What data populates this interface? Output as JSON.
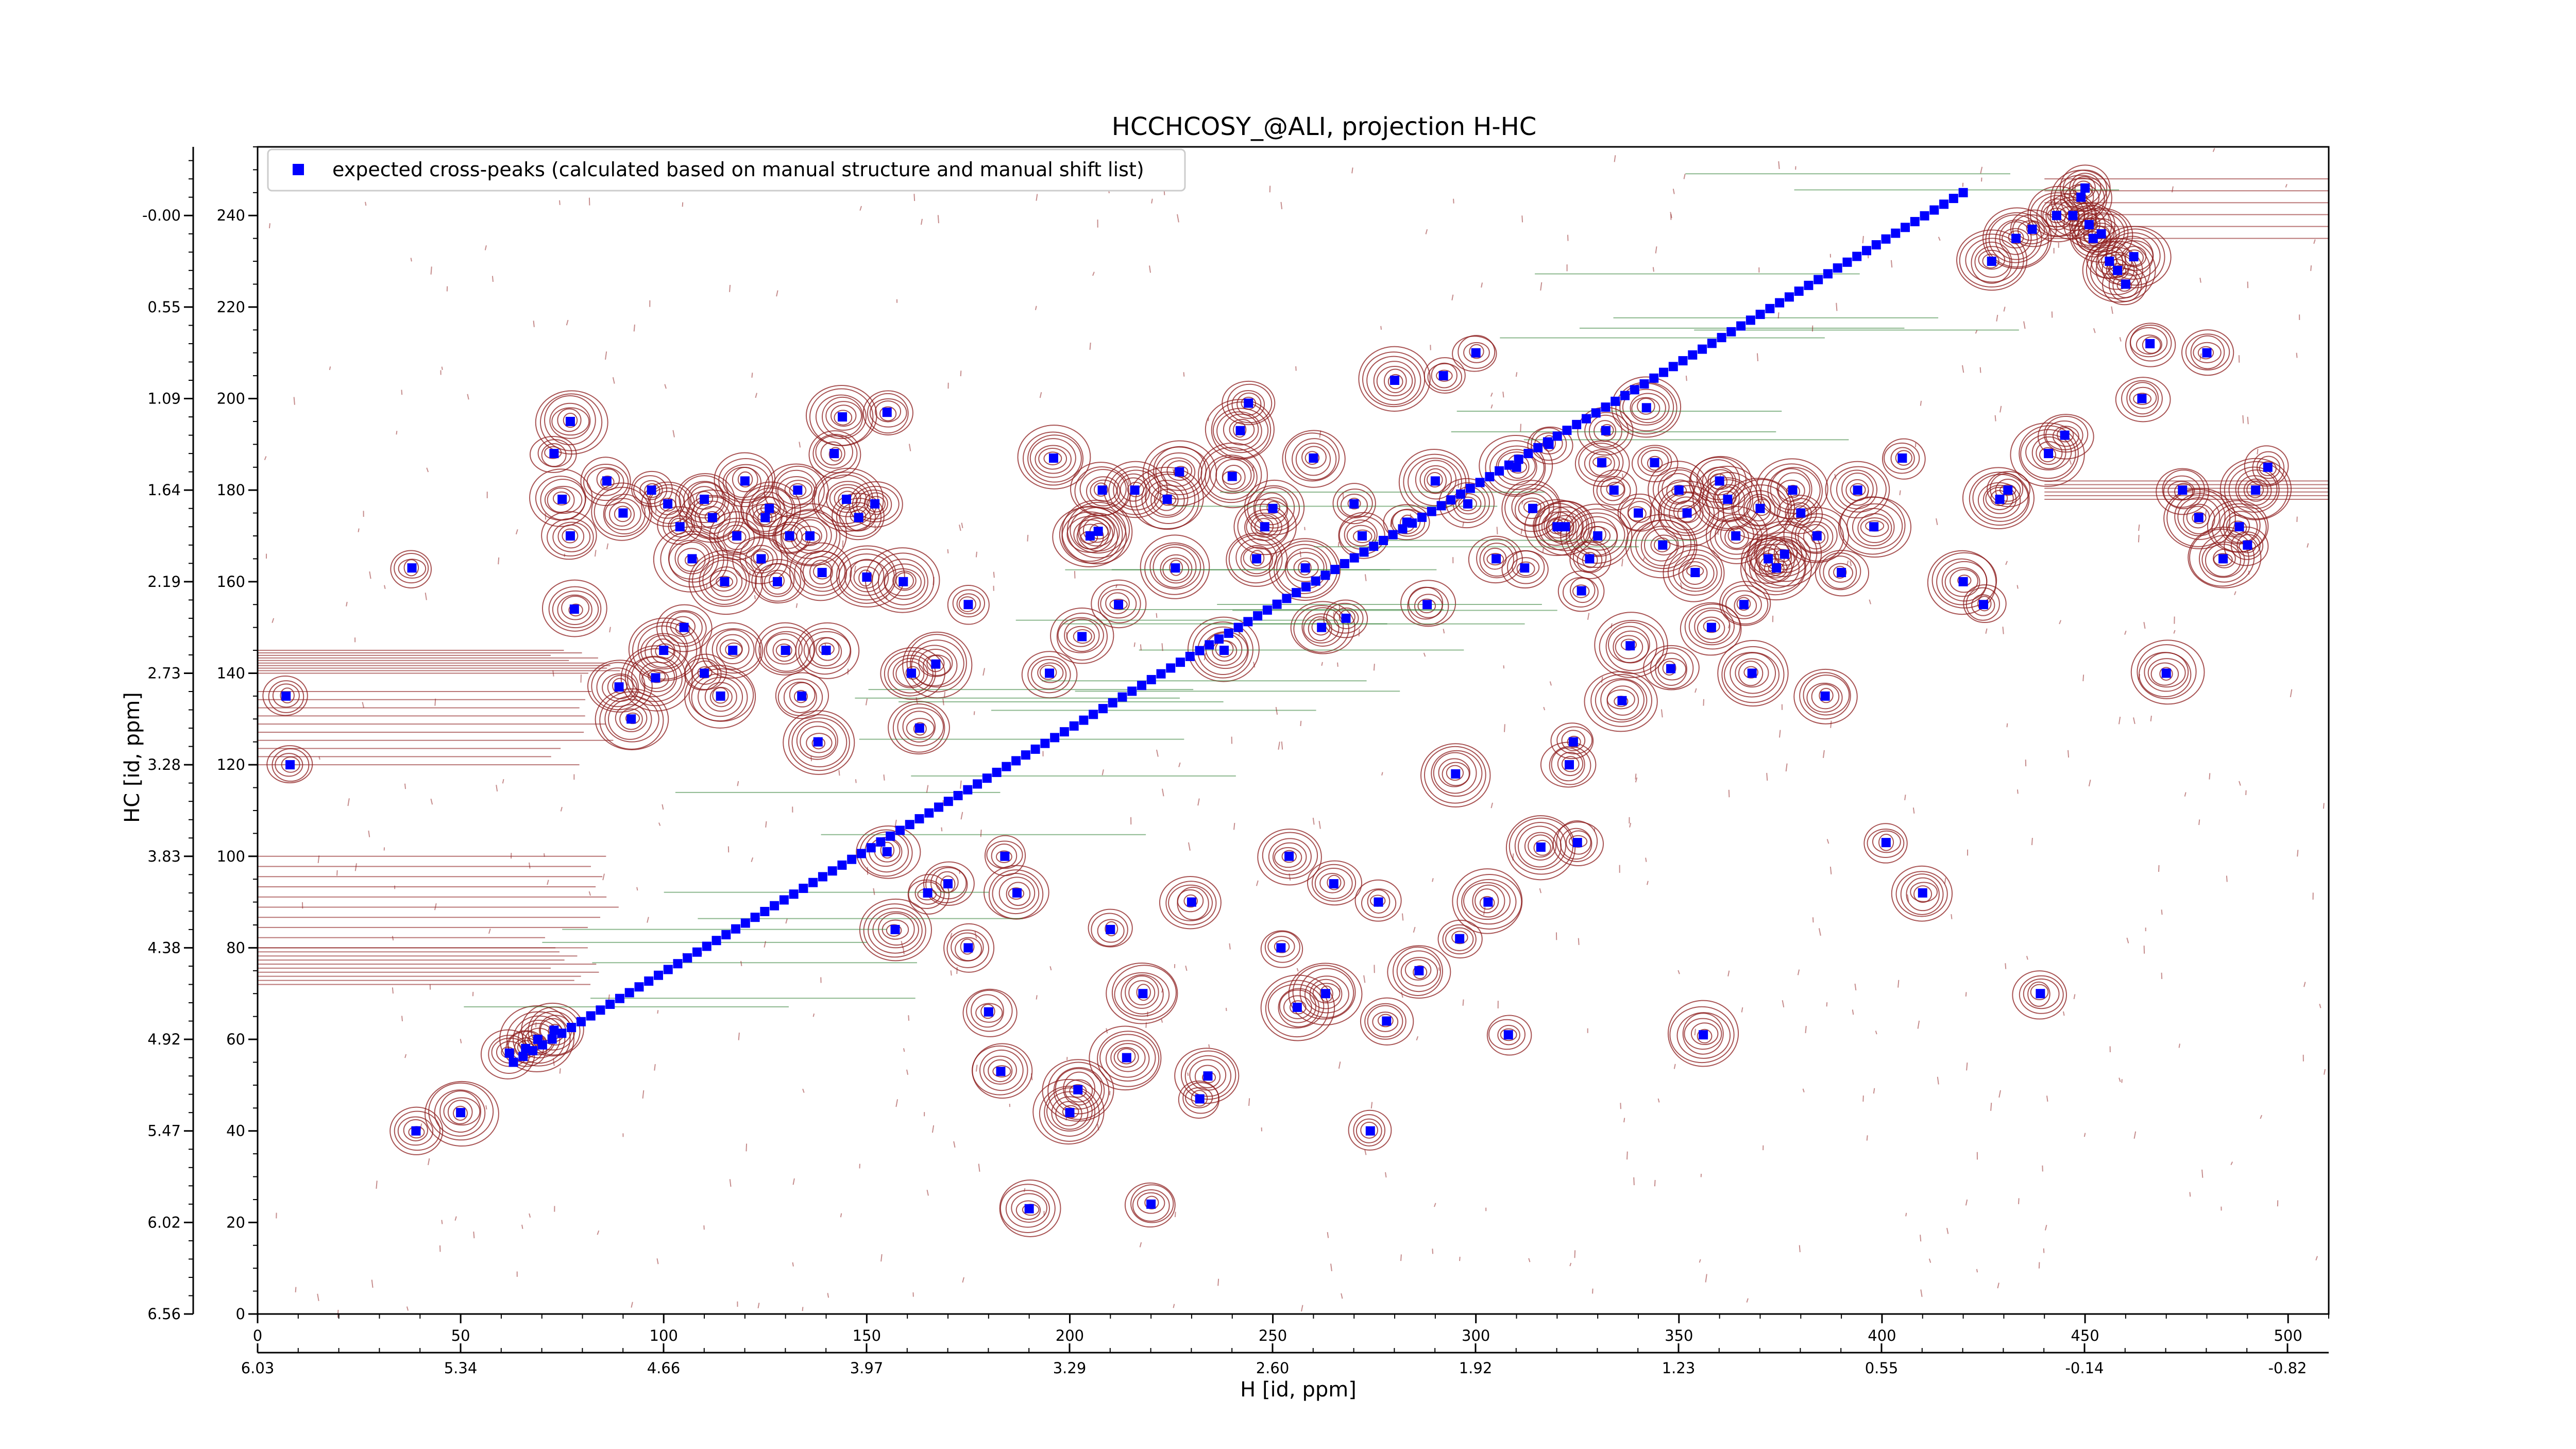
{
  "chart_data": {
    "type": "scatter",
    "title": "HCCHCOSY_@ALI, projection H-HC",
    "xlabel": "H [id, ppm]",
    "ylabel": "HC [id, ppm]",
    "x_index_range": [
      0,
      510
    ],
    "y_index_range": [
      0,
      255
    ],
    "x_index_ticks": [
      "0",
      "50",
      "100",
      "150",
      "200",
      "250",
      "300",
      "350",
      "400",
      "450",
      "500"
    ],
    "x_ppm_ticks": [
      "6.03",
      "5.34",
      "4.66",
      "3.97",
      "3.29",
      "2.60",
      "1.92",
      "1.23",
      "0.55",
      "-0.14",
      "-0.82"
    ],
    "y_index_ticks": [
      "0",
      "20",
      "40",
      "60",
      "80",
      "100",
      "120",
      "140",
      "160",
      "180",
      "200",
      "220",
      "240"
    ],
    "y_ppm_ticks": [
      "6.56",
      "6.02",
      "5.47",
      "4.92",
      "4.38",
      "3.83",
      "3.28",
      "2.73",
      "2.19",
      "1.64",
      "1.09",
      "0.55",
      "-0.00"
    ],
    "legend": {
      "position": "top-left",
      "entry": "expected cross-peaks (calculated based on manual structure and manual shift list)"
    },
    "colors": {
      "points": "#0000ff",
      "positive_contours": "#8b1a1a",
      "negative_contours": "#2e7d32"
    },
    "series": [
      {
        "name": "expected cross-peaks (calculated based on manual structure and manual shift list)",
        "diagonal": {
          "from": [
            63,
            55
          ],
          "to": [
            420,
            245
          ]
        },
        "points": [
          [
            7,
            135
          ],
          [
            8,
            120
          ],
          [
            38,
            163
          ],
          [
            39,
            40
          ],
          [
            50,
            44
          ],
          [
            62,
            57
          ],
          [
            66,
            58
          ],
          [
            69,
            60
          ],
          [
            73,
            62
          ],
          [
            75,
            178
          ],
          [
            73,
            188
          ],
          [
            77,
            195
          ],
          [
            77,
            170
          ],
          [
            78,
            154
          ],
          [
            86,
            182
          ],
          [
            89,
            137
          ],
          [
            90,
            175
          ],
          [
            92,
            130
          ],
          [
            97,
            180
          ],
          [
            98,
            139
          ],
          [
            100,
            145
          ],
          [
            101,
            177
          ],
          [
            104,
            172
          ],
          [
            105,
            150
          ],
          [
            107,
            165
          ],
          [
            110,
            178
          ],
          [
            112,
            174
          ],
          [
            110,
            140
          ],
          [
            114,
            135
          ],
          [
            115,
            160
          ],
          [
            117,
            145
          ],
          [
            118,
            170
          ],
          [
            120,
            182
          ],
          [
            124,
            165
          ],
          [
            125,
            174
          ],
          [
            126,
            176
          ],
          [
            128,
            160
          ],
          [
            130,
            145
          ],
          [
            131,
            170
          ],
          [
            133,
            180
          ],
          [
            134,
            135
          ],
          [
            136,
            170
          ],
          [
            138,
            125
          ],
          [
            139,
            162
          ],
          [
            140,
            145
          ],
          [
            142,
            188
          ],
          [
            144,
            196
          ],
          [
            145,
            178
          ],
          [
            148,
            174
          ],
          [
            150,
            161
          ],
          [
            152,
            177
          ],
          [
            155,
            197
          ],
          [
            155,
            101
          ],
          [
            157,
            84
          ],
          [
            159,
            160
          ],
          [
            161,
            140
          ],
          [
            163,
            128
          ],
          [
            165,
            92
          ],
          [
            167,
            142
          ],
          [
            170,
            94
          ],
          [
            175,
            155
          ],
          [
            175,
            80
          ],
          [
            180,
            66
          ],
          [
            183,
            53
          ],
          [
            184,
            100
          ],
          [
            187,
            92
          ],
          [
            190,
            23
          ],
          [
            195,
            140
          ],
          [
            196,
            187
          ],
          [
            200,
            44
          ],
          [
            202,
            49
          ],
          [
            203,
            148
          ],
          [
            205,
            170
          ],
          [
            207,
            171
          ],
          [
            208,
            180
          ],
          [
            210,
            84
          ],
          [
            212,
            155
          ],
          [
            214,
            56
          ],
          [
            216,
            180
          ],
          [
            218,
            70
          ],
          [
            220,
            24
          ],
          [
            224,
            178
          ],
          [
            226,
            163
          ],
          [
            227,
            184
          ],
          [
            230,
            90
          ],
          [
            232,
            47
          ],
          [
            234,
            52
          ],
          [
            238,
            145
          ],
          [
            240,
            183
          ],
          [
            242,
            193
          ],
          [
            244,
            199
          ],
          [
            246,
            165
          ],
          [
            248,
            172
          ],
          [
            250,
            176
          ],
          [
            252,
            80
          ],
          [
            254,
            100
          ],
          [
            256,
            67
          ],
          [
            258,
            163
          ],
          [
            260,
            187
          ],
          [
            262,
            150
          ],
          [
            263,
            70
          ],
          [
            265,
            94
          ],
          [
            268,
            152
          ],
          [
            270,
            177
          ],
          [
            272,
            170
          ],
          [
            274,
            40
          ],
          [
            276,
            90
          ],
          [
            278,
            64
          ],
          [
            280,
            204
          ],
          [
            283,
            173
          ],
          [
            286,
            75
          ],
          [
            288,
            155
          ],
          [
            290,
            182
          ],
          [
            292,
            205
          ],
          [
            295,
            118
          ],
          [
            296,
            82
          ],
          [
            298,
            177
          ],
          [
            300,
            210
          ],
          [
            303,
            90
          ],
          [
            305,
            165
          ],
          [
            308,
            61
          ],
          [
            310,
            185
          ],
          [
            312,
            163
          ],
          [
            314,
            176
          ],
          [
            316,
            102
          ],
          [
            318,
            190
          ],
          [
            320,
            172
          ],
          [
            322,
            172
          ],
          [
            323,
            120
          ],
          [
            324,
            125
          ],
          [
            325,
            103
          ],
          [
            326,
            158
          ],
          [
            328,
            165
          ],
          [
            330,
            170
          ],
          [
            331,
            186
          ],
          [
            332,
            193
          ],
          [
            334,
            180
          ],
          [
            336,
            134
          ],
          [
            338,
            146
          ],
          [
            340,
            175
          ],
          [
            342,
            198
          ],
          [
            344,
            186
          ],
          [
            346,
            168
          ],
          [
            348,
            141
          ],
          [
            350,
            180
          ],
          [
            352,
            175
          ],
          [
            354,
            162
          ],
          [
            356,
            61
          ],
          [
            358,
            150
          ],
          [
            360,
            182
          ],
          [
            362,
            178
          ],
          [
            364,
            170
          ],
          [
            366,
            155
          ],
          [
            368,
            140
          ],
          [
            370,
            176
          ],
          [
            372,
            165
          ],
          [
            374,
            163
          ],
          [
            376,
            166
          ],
          [
            378,
            180
          ],
          [
            380,
            175
          ],
          [
            384,
            170
          ],
          [
            386,
            135
          ],
          [
            390,
            162
          ],
          [
            394,
            180
          ],
          [
            398,
            172
          ],
          [
            401,
            103
          ],
          [
            405,
            187
          ],
          [
            410,
            92
          ],
          [
            420,
            160
          ],
          [
            425,
            155
          ],
          [
            427,
            230
          ],
          [
            429,
            178
          ],
          [
            431,
            180
          ],
          [
            433,
            235
          ],
          [
            437,
            237
          ],
          [
            439,
            70
          ],
          [
            441,
            188
          ],
          [
            443,
            240
          ],
          [
            445,
            192
          ],
          [
            447,
            240
          ],
          [
            449,
            244
          ],
          [
            450,
            246
          ],
          [
            451,
            238
          ],
          [
            452,
            235
          ],
          [
            454,
            236
          ],
          [
            456,
            230
          ],
          [
            458,
            228
          ],
          [
            460,
            225
          ],
          [
            462,
            231
          ],
          [
            464,
            200
          ],
          [
            466,
            212
          ],
          [
            470,
            140
          ],
          [
            474,
            180
          ],
          [
            478,
            174
          ],
          [
            480,
            210
          ],
          [
            484,
            165
          ],
          [
            488,
            172
          ],
          [
            490,
            168
          ],
          [
            492,
            180
          ],
          [
            495,
            185
          ]
        ]
      }
    ]
  }
}
